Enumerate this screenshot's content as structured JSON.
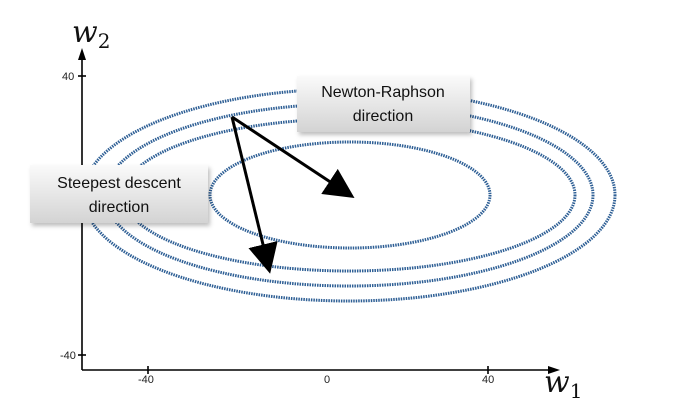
{
  "axes": {
    "x_label_main": "w",
    "x_label_sub": "1",
    "y_label_main": "w",
    "y_label_sub": "2",
    "x_ticks": [
      "-40",
      "0",
      "40"
    ],
    "y_ticks": [
      "40",
      "-40"
    ]
  },
  "annotations": {
    "newton_line1": "Newton-Raphson",
    "newton_line2": "direction",
    "steepest_line1": "Steepest descent",
    "steepest_line2": "direction"
  },
  "colors": {
    "contour": "#2e5f95",
    "arrow": "#000000",
    "axis": "#000000",
    "callout_top": "#fafafa",
    "callout_bottom": "#d6d6d6"
  }
}
